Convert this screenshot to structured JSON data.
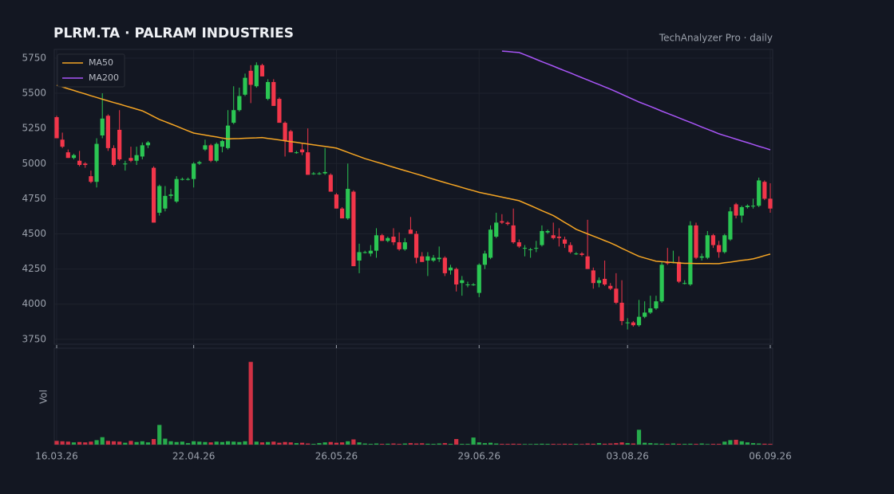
{
  "chart_data": {
    "type": "candlestick",
    "title": "PLRM.TA  ·  PALRAM INDUSTRIES",
    "subtitle": "TechAnalyzer Pro · daily",
    "volume_label": "Vol",
    "categories": [
      "16.03.26",
      null,
      null,
      null,
      null,
      null,
      null,
      null,
      null,
      null,
      null,
      null,
      null,
      null,
      null,
      null,
      null,
      null,
      null,
      null,
      null,
      null,
      null,
      null,
      "22.04.26",
      null,
      null,
      null,
      null,
      null,
      null,
      null,
      null,
      null,
      null,
      null,
      null,
      null,
      null,
      null,
      null,
      null,
      null,
      null,
      null,
      null,
      null,
      null,
      null,
      "26.05.26",
      null,
      null,
      null,
      null,
      null,
      null,
      null,
      null,
      null,
      null,
      null,
      null,
      null,
      null,
      null,
      null,
      null,
      null,
      null,
      null,
      null,
      null,
      null,
      null,
      "29.06.26",
      null,
      null,
      null,
      null,
      null,
      null,
      null,
      null,
      null,
      null,
      null,
      null,
      null,
      null,
      null,
      null,
      null,
      null,
      null,
      null,
      null,
      null,
      null,
      null,
      null,
      "03.08.26",
      null,
      null,
      null,
      null,
      null,
      null,
      null,
      null,
      null,
      null,
      null,
      null,
      null,
      null,
      null,
      null,
      null,
      null,
      null,
      null,
      null,
      null,
      null,
      null,
      "06.09.26"
    ],
    "candles": [
      [
        5330,
        5340,
        5180,
        5180
      ],
      [
        5170,
        5220,
        5110,
        5120
      ],
      [
        5080,
        5100,
        5040,
        5040
      ],
      [
        5040,
        5070,
        5030,
        5060
      ],
      [
        5020,
        5090,
        4980,
        4990
      ],
      [
        5000,
        5010,
        4970,
        4990
      ],
      [
        4910,
        4950,
        4860,
        4870
      ],
      [
        4870,
        5180,
        4830,
        5140
      ],
      [
        5200,
        5500,
        5180,
        5320
      ],
      [
        5340,
        5350,
        5090,
        5110
      ],
      [
        5110,
        5130,
        4980,
        4990
      ],
      [
        5240,
        5380,
        5020,
        5030
      ],
      [
        5000,
        5020,
        4950,
        5000
      ],
      [
        5040,
        5120,
        5010,
        5020
      ],
      [
        5020,
        5120,
        4990,
        5060
      ],
      [
        5050,
        5150,
        5030,
        5130
      ],
      [
        5130,
        5160,
        5110,
        5150
      ],
      [
        4970,
        4980,
        4580,
        4580
      ],
      [
        4650,
        4850,
        4630,
        4840
      ],
      [
        4680,
        4840,
        4660,
        4770
      ],
      [
        4770,
        4820,
        4750,
        4780
      ],
      [
        4730,
        4910,
        4720,
        4890
      ],
      [
        4890,
        4900,
        4880,
        4890
      ],
      [
        4890,
        4900,
        4880,
        4890
      ],
      [
        4890,
        5010,
        4830,
        5000
      ],
      [
        5000,
        5020,
        4990,
        5010
      ],
      [
        5100,
        5170,
        5090,
        5130
      ],
      [
        5130,
        5140,
        5010,
        5020
      ],
      [
        5020,
        5150,
        5010,
        5140
      ],
      [
        5120,
        5170,
        5080,
        5160
      ],
      [
        5110,
        5380,
        5100,
        5270
      ],
      [
        5290,
        5550,
        5280,
        5380
      ],
      [
        5380,
        5540,
        5370,
        5480
      ],
      [
        5490,
        5640,
        5480,
        5610
      ],
      [
        5660,
        5700,
        5430,
        5560
      ],
      [
        5550,
        5720,
        5540,
        5700
      ],
      [
        5700,
        5710,
        5620,
        5620
      ],
      [
        5460,
        5600,
        5450,
        5580
      ],
      [
        5580,
        5600,
        5410,
        5410
      ],
      [
        5460,
        5470,
        5290,
        5290
      ],
      [
        5290,
        5300,
        5050,
        5160
      ],
      [
        5230,
        5240,
        5080,
        5080
      ],
      [
        5080,
        5090,
        5070,
        5080
      ],
      [
        5100,
        5140,
        5060,
        5080
      ],
      [
        5080,
        5250,
        4920,
        4920
      ],
      [
        4930,
        4940,
        4920,
        4930
      ],
      [
        4930,
        4940,
        4920,
        4930
      ],
      [
        4930,
        5110,
        4920,
        4940
      ],
      [
        4920,
        4930,
        4800,
        4800
      ],
      [
        4780,
        4790,
        4680,
        4680
      ],
      [
        4680,
        4690,
        4610,
        4610
      ],
      [
        4610,
        5000,
        4600,
        4820
      ],
      [
        4800,
        4810,
        4270,
        4270
      ],
      [
        4310,
        4430,
        4220,
        4370
      ],
      [
        4370,
        4380,
        4360,
        4370
      ],
      [
        4360,
        4420,
        4340,
        4380
      ],
      [
        4380,
        4540,
        4330,
        4490
      ],
      [
        4490,
        4500,
        4450,
        4450
      ],
      [
        4450,
        4480,
        4440,
        4470
      ],
      [
        4480,
        4540,
        4420,
        4440
      ],
      [
        4440,
        4510,
        4380,
        4390
      ],
      [
        4390,
        4470,
        4380,
        4440
      ],
      [
        4530,
        4620,
        4500,
        4500
      ],
      [
        4500,
        4520,
        4290,
        4330
      ],
      [
        4340,
        4370,
        4300,
        4300
      ],
      [
        4310,
        4370,
        4200,
        4340
      ],
      [
        4310,
        4350,
        4300,
        4330
      ],
      [
        4320,
        4410,
        4300,
        4330
      ],
      [
        4330,
        4340,
        4200,
        4220
      ],
      [
        4240,
        4280,
        4210,
        4260
      ],
      [
        4250,
        4260,
        4090,
        4140
      ],
      [
        4150,
        4200,
        4060,
        4170
      ],
      [
        4140,
        4160,
        4120,
        4140
      ],
      [
        4140,
        4150,
        4130,
        4140
      ],
      [
        4080,
        4290,
        4050,
        4280
      ],
      [
        4280,
        4380,
        4250,
        4360
      ],
      [
        4330,
        4560,
        4320,
        4530
      ],
      [
        4480,
        4650,
        4470,
        4580
      ],
      [
        4590,
        4640,
        4570,
        4580
      ],
      [
        4580,
        4590,
        4560,
        4570
      ],
      [
        4560,
        4680,
        4430,
        4440
      ],
      [
        4440,
        4460,
        4400,
        4410
      ],
      [
        4400,
        4420,
        4340,
        4400
      ],
      [
        4390,
        4400,
        4330,
        4390
      ],
      [
        4400,
        4450,
        4370,
        4400
      ],
      [
        4420,
        4560,
        4410,
        4520
      ],
      [
        4510,
        4530,
        4500,
        4520
      ],
      [
        4490,
        4580,
        4460,
        4470
      ],
      [
        4480,
        4540,
        4410,
        4470
      ],
      [
        4460,
        4480,
        4400,
        4430
      ],
      [
        4420,
        4440,
        4360,
        4370
      ],
      [
        4360,
        4370,
        4350,
        4360
      ],
      [
        4360,
        4370,
        4340,
        4350
      ],
      [
        4340,
        4600,
        4250,
        4250
      ],
      [
        4240,
        4260,
        4110,
        4150
      ],
      [
        4150,
        4190,
        4120,
        4170
      ],
      [
        4180,
        4310,
        4130,
        4140
      ],
      [
        4130,
        4150,
        4100,
        4110
      ],
      [
        4110,
        4220,
        4000,
        4010
      ],
      [
        4010,
        4170,
        3850,
        3880
      ],
      [
        3870,
        3900,
        3820,
        3870
      ],
      [
        3870,
        3880,
        3840,
        3850
      ],
      [
        3850,
        4030,
        3840,
        3910
      ],
      [
        3910,
        4020,
        3900,
        3940
      ],
      [
        3940,
        4060,
        3930,
        3970
      ],
      [
        3970,
        4060,
        3960,
        4020
      ],
      [
        4020,
        4300,
        4010,
        4280
      ],
      [
        4300,
        4400,
        4280,
        4290
      ],
      [
        4300,
        4380,
        4290,
        4300
      ],
      [
        4300,
        4340,
        4150,
        4160
      ],
      [
        4150,
        4170,
        4140,
        4150
      ],
      [
        4140,
        4590,
        4130,
        4560
      ],
      [
        4560,
        4580,
        4320,
        4330
      ],
      [
        4330,
        4360,
        4310,
        4340
      ],
      [
        4330,
        4520,
        4320,
        4490
      ],
      [
        4490,
        4500,
        4400,
        4420
      ],
      [
        4420,
        4450,
        4330,
        4370
      ],
      [
        4370,
        4500,
        4360,
        4490
      ],
      [
        4460,
        4690,
        4450,
        4660
      ],
      [
        4710,
        4720,
        4610,
        4630
      ],
      [
        4630,
        4700,
        4580,
        4690
      ],
      [
        4690,
        4710,
        4680,
        4700
      ],
      [
        4700,
        4750,
        4680,
        4700
      ],
      [
        4700,
        4900,
        4690,
        4880
      ],
      [
        4870,
        4880,
        4740,
        4750
      ],
      [
        4750,
        4860,
        4650,
        4680
      ]
    ],
    "volume": [
      50,
      45,
      40,
      30,
      35,
      30,
      40,
      60,
      100,
      50,
      45,
      40,
      25,
      50,
      35,
      45,
      30,
      75,
      265,
      80,
      45,
      35,
      40,
      20,
      45,
      40,
      35,
      30,
      40,
      35,
      45,
      40,
      35,
      45,
      1115,
      40,
      30,
      35,
      40,
      25,
      35,
      30,
      20,
      25,
      15,
      10,
      20,
      30,
      35,
      25,
      30,
      45,
      70,
      30,
      15,
      10,
      15,
      10,
      12,
      15,
      10,
      15,
      20,
      15,
      18,
      12,
      10,
      15,
      20,
      10,
      75,
      10,
      10,
      95,
      30,
      20,
      25,
      15,
      10,
      10,
      12,
      10,
      8,
      8,
      10,
      12,
      10,
      10,
      8,
      12,
      10,
      10,
      8,
      15,
      12,
      20,
      12,
      15,
      20,
      30,
      20,
      15,
      200,
      25,
      20,
      15,
      12,
      10,
      15,
      10,
      10,
      12,
      10,
      15,
      8,
      10,
      10,
      40,
      60,
      65,
      45,
      30,
      20,
      15,
      12,
      10
    ],
    "series": [
      {
        "name": "MA50",
        "color": "#f5a524",
        "values": [
          5557,
          5545,
          5532,
          5520,
          5507,
          5495,
          5482,
          5470,
          5458,
          5446,
          5434,
          5423,
          5411,
          5399,
          5387,
          5375,
          5355,
          5334,
          5314,
          5298,
          5282,
          5266,
          5249,
          5233,
          5217,
          5210,
          5203,
          5196,
          5189,
          5182,
          5175,
          5177,
          5178,
          5180,
          5182,
          5183,
          5185,
          5179,
          5174,
          5168,
          5162,
          5156,
          5151,
          5145,
          5139,
          5133,
          5128,
          5122,
          5116,
          5110,
          5095,
          5080,
          5065,
          5050,
          5035,
          5023,
          5011,
          4999,
          4986,
          4974,
          4962,
          4950,
          4938,
          4926,
          4914,
          4901,
          4889,
          4877,
          4865,
          4853,
          4842,
          4830,
          4818,
          4807,
          4795,
          4787,
          4778,
          4770,
          4761,
          4753,
          4744,
          4736,
          4718,
          4701,
          4683,
          4665,
          4648,
          4630,
          4606,
          4581,
          4557,
          4532,
          4516,
          4500,
          4484,
          4468,
          4452,
          4436,
          4417,
          4397,
          4378,
          4359,
          4340,
          4328,
          4317,
          4305,
          4302,
          4299,
          4296,
          4293,
          4290,
          4290,
          4289,
          4289,
          4289,
          4288,
          4288,
          4294,
          4299,
          4305,
          4311,
          4316,
          4322,
          4333,
          4345,
          4356
        ]
      },
      {
        "name": "MA200",
        "color": "#a855f7",
        "values": [
          null,
          null,
          null,
          null,
          null,
          null,
          null,
          null,
          null,
          null,
          null,
          null,
          null,
          null,
          null,
          null,
          null,
          null,
          null,
          null,
          null,
          null,
          null,
          null,
          null,
          null,
          null,
          null,
          null,
          null,
          null,
          null,
          null,
          null,
          null,
          null,
          null,
          null,
          null,
          null,
          null,
          null,
          null,
          null,
          null,
          null,
          null,
          null,
          null,
          null,
          null,
          null,
          null,
          null,
          null,
          null,
          null,
          null,
          null,
          null,
          null,
          null,
          null,
          null,
          null,
          null,
          null,
          null,
          null,
          null,
          null,
          null,
          null,
          null,
          null,
          null,
          null,
          null,
          5800,
          5797,
          5793,
          5790,
          5774,
          5758,
          5741,
          5725,
          5709,
          5693,
          5676,
          5660,
          5644,
          5627,
          5611,
          5595,
          5578,
          5562,
          5545,
          5529,
          5511,
          5493,
          5474,
          5456,
          5438,
          5422,
          5406,
          5390,
          5373,
          5357,
          5341,
          5325,
          5309,
          5293,
          5277,
          5260,
          5244,
          5228,
          5212,
          5199,
          5187,
          5174,
          5161,
          5149,
          5136,
          5123,
          5111,
          5098
        ]
      }
    ],
    "up_color": "#2bc653",
    "down_color": "#f2364a",
    "ylim": [
      3715,
      5812
    ],
    "yticks": [
      3750,
      4000,
      4250,
      4500,
      4750,
      5000,
      5250,
      5500,
      5750
    ],
    "volume_ylim": [
      0,
      1300
    ],
    "grid": true,
    "legend": "upper left"
  }
}
